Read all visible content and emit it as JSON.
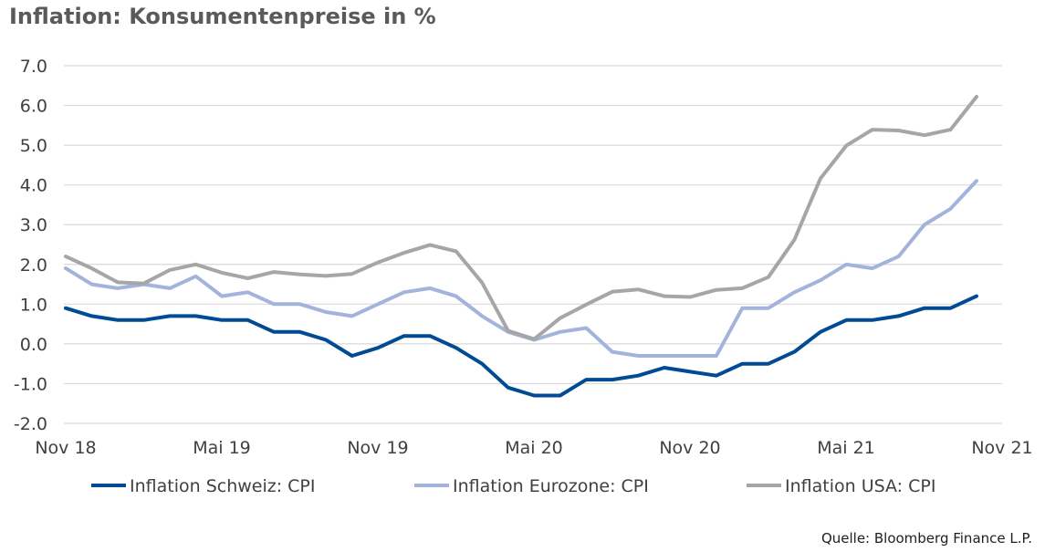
{
  "chart_data": {
    "type": "line",
    "title": "Inflation: Konsumentenpreise in %",
    "xlabel": "",
    "ylabel": "",
    "ylim": [
      -2,
      7
    ],
    "yticks": [
      "7.0",
      "6.0",
      "5.0",
      "4.0",
      "3.0",
      "2.0",
      "1.0",
      "0.0",
      "-1.0",
      "-2.0"
    ],
    "yticks_values": [
      7,
      6,
      5,
      4,
      3,
      2,
      1,
      0,
      -1,
      -2
    ],
    "x_tick_labels": [
      "Nov 18",
      "Mai 19",
      "Nov 19",
      "Mai 20",
      "Nov 20",
      "Mai 21",
      "Nov 21"
    ],
    "x_tick_months": [
      0,
      6,
      12,
      18,
      24,
      30,
      36
    ],
    "x_months": [
      0,
      1,
      2,
      3,
      4,
      5,
      6,
      7,
      8,
      9,
      10,
      11,
      12,
      13,
      14,
      15,
      16,
      17,
      18,
      19,
      20,
      21,
      22,
      23,
      24,
      25,
      26,
      27,
      28,
      29,
      30,
      31,
      32,
      33,
      34,
      35
    ],
    "legend_position": "bottom",
    "series": [
      {
        "name": "Inflation Schweiz: CPI",
        "color": "#004b93",
        "values": [
          0.9,
          0.7,
          0.6,
          0.6,
          0.7,
          0.7,
          0.6,
          0.6,
          0.3,
          0.3,
          0.1,
          -0.3,
          -0.1,
          0.2,
          0.2,
          -0.1,
          -0.5,
          -1.1,
          -1.3,
          -1.3,
          -0.9,
          -0.9,
          -0.8,
          -0.6,
          -0.7,
          -0.8,
          -0.5,
          -0.5,
          -0.2,
          0.3,
          0.6,
          0.6,
          0.7,
          0.9,
          0.9,
          1.2
        ]
      },
      {
        "name": "Inflation Eurozone: CPI",
        "color": "#a3b3db",
        "values": [
          1.9,
          1.5,
          1.4,
          1.5,
          1.4,
          1.7,
          1.2,
          1.3,
          1.0,
          1.0,
          0.8,
          0.7,
          1.0,
          1.3,
          1.4,
          1.2,
          0.7,
          0.3,
          0.1,
          0.3,
          0.4,
          -0.2,
          -0.3,
          -0.3,
          -0.3,
          -0.3,
          0.9,
          0.9,
          1.3,
          1.6,
          2.0,
          1.9,
          2.2,
          3.0,
          3.4,
          4.1
        ]
      },
      {
        "name": "Inflation USA: CPI",
        "color": "#a6a6a6",
        "values": [
          2.2,
          1.9,
          1.55,
          1.52,
          1.86,
          2.0,
          1.79,
          1.65,
          1.81,
          1.75,
          1.71,
          1.76,
          2.05,
          2.29,
          2.49,
          2.33,
          1.54,
          0.33,
          0.12,
          0.65,
          0.99,
          1.31,
          1.37,
          1.2,
          1.18,
          1.36,
          1.4,
          1.68,
          2.62,
          4.16,
          4.99,
          5.39,
          5.37,
          5.25,
          5.39,
          6.22
        ]
      }
    ]
  },
  "footer": {
    "source": "Quelle: Bloomberg Finance L.P."
  }
}
